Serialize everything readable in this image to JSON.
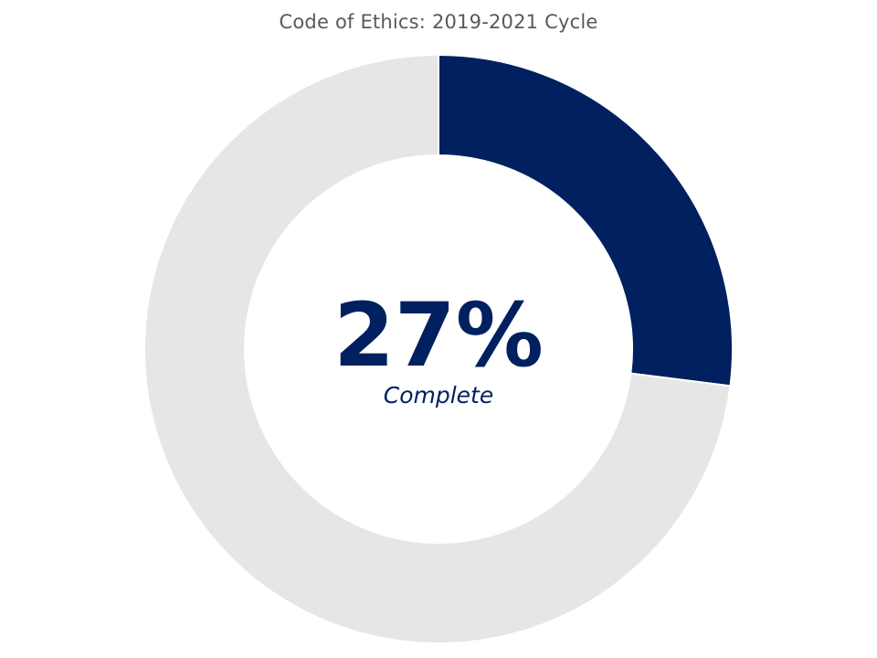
{
  "chart_data": {
    "type": "pie",
    "title": "Code of Ethics: 2019-2021 Cycle",
    "style": "donut",
    "values": [
      27,
      73
    ],
    "center_value": "27%",
    "center_label": "Complete",
    "colors": {
      "complete": "#002060",
      "remaining": "#E6E6E6"
    }
  }
}
